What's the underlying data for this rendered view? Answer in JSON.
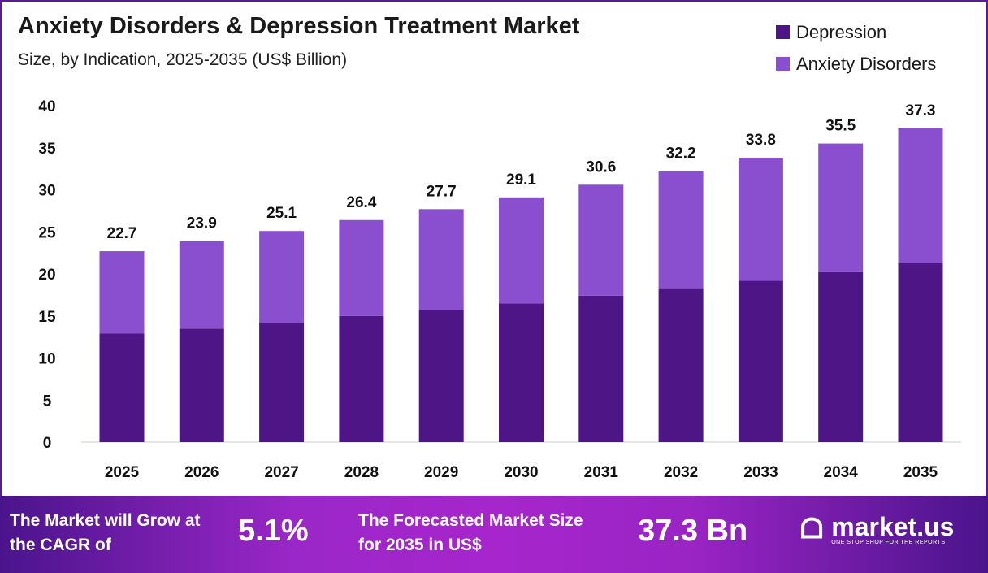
{
  "chart_data": {
    "type": "bar",
    "stacked": true,
    "title": "Anxiety Disorders & Depression Treatment Market",
    "subtitle": "Size, by Indication, 2025-2035 (US$ Billion)",
    "categories": [
      "2025",
      "2026",
      "2027",
      "2028",
      "2029",
      "2030",
      "2031",
      "2032",
      "2033",
      "2034",
      "2035"
    ],
    "series": [
      {
        "name": "Depression",
        "color": "#4e1586",
        "values": [
          12.9,
          13.5,
          14.2,
          15.0,
          15.7,
          16.5,
          17.4,
          18.3,
          19.2,
          20.2,
          21.3
        ]
      },
      {
        "name": "Anxiety Disorders",
        "color": "#8a4fcf",
        "values": [
          9.8,
          10.4,
          10.9,
          11.4,
          12.0,
          12.6,
          13.2,
          13.9,
          14.6,
          15.3,
          16.0
        ]
      }
    ],
    "totals": [
      "22.7",
      "23.9",
      "25.1",
      "26.4",
      "27.7",
      "29.1",
      "30.6",
      "32.2",
      "33.8",
      "35.5",
      "37.3"
    ],
    "ylim": [
      0,
      40
    ],
    "yticks": [
      "0",
      "5",
      "10",
      "15",
      "20",
      "25",
      "30",
      "35",
      "40"
    ],
    "grid": false,
    "legend_position": "top-right"
  },
  "footer": {
    "cagr_label": "The Market will Grow at the CAGR of",
    "cagr_value": "5.1%",
    "forecast_label": "The Forecasted Market Size for 2035 in US$",
    "forecast_value": "37.3 Bn",
    "logo_name": "market.us",
    "logo_tagline": "ONE STOP SHOP FOR THE REPORTS"
  }
}
